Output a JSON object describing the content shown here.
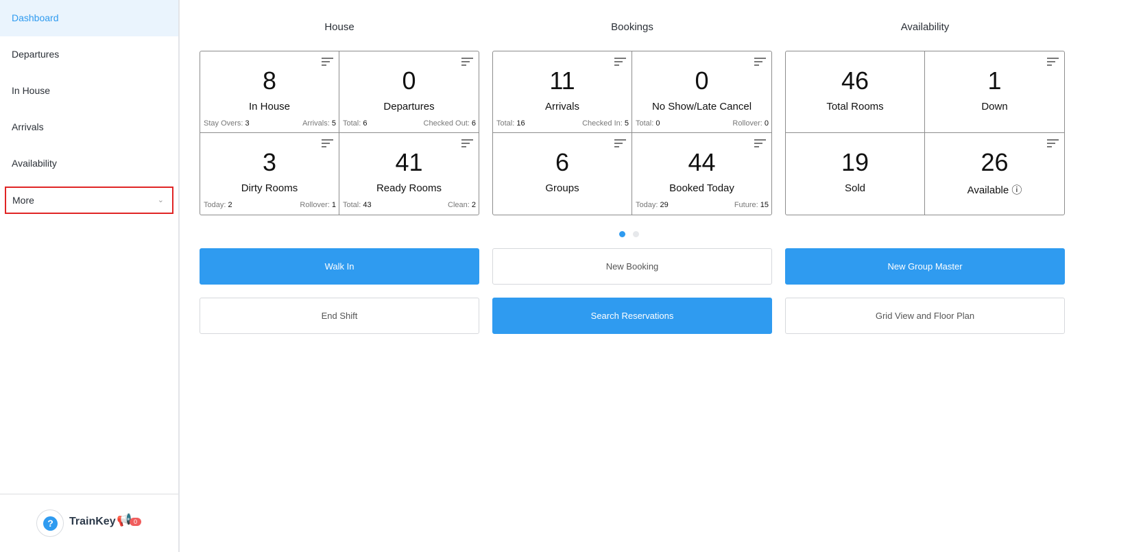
{
  "sidebar": {
    "items": [
      {
        "label": "Dashboard",
        "active": true
      },
      {
        "label": "Departures"
      },
      {
        "label": "In House"
      },
      {
        "label": "Arrivals"
      },
      {
        "label": "Availability"
      }
    ],
    "more": "More",
    "brand": "TrainKey",
    "help_icon": "?",
    "notification_count": "0"
  },
  "columns": [
    {
      "title": "House",
      "cells": [
        {
          "value": "8",
          "label": "In House",
          "left_label": "Stay Overs:",
          "left_value": "3",
          "right_label": "Arrivals:",
          "right_value": "5"
        },
        {
          "value": "0",
          "label": "Departures",
          "left_label": "Total:",
          "left_value": "6",
          "right_label": "Checked Out:",
          "right_value": "6"
        },
        {
          "value": "3",
          "label": "Dirty Rooms",
          "left_label": "Today:",
          "left_value": "2",
          "right_label": "Rollover:",
          "right_value": "1"
        },
        {
          "value": "41",
          "label": "Ready Rooms",
          "left_label": "Total:",
          "left_value": "43",
          "right_label": "Clean:",
          "right_value": "2"
        }
      ]
    },
    {
      "title": "Bookings",
      "cells": [
        {
          "value": "11",
          "label": "Arrivals",
          "left_label": "Total:",
          "left_value": "16",
          "right_label": "Checked In:",
          "right_value": "5"
        },
        {
          "value": "0",
          "label": "No Show/Late Cancel",
          "left_label": "Total:",
          "left_value": "0",
          "right_label": "Rollover:",
          "right_value": "0"
        },
        {
          "value": "6",
          "label": "Groups"
        },
        {
          "value": "44",
          "label": "Booked Today",
          "left_label": "Today:",
          "left_value": "29",
          "right_label": "Future:",
          "right_value": "15"
        }
      ]
    },
    {
      "title": "Availability",
      "cells": [
        {
          "value": "46",
          "label": "Total Rooms"
        },
        {
          "value": "1",
          "label": "Down"
        },
        {
          "value": "19",
          "label": "Sold"
        },
        {
          "value": "26",
          "label": "Available ⓘ"
        }
      ]
    }
  ],
  "buttons": [
    "Walk In",
    "New Booking",
    "New Group Master",
    "End Shift",
    "Search Reservations",
    "Grid View and Floor Plan"
  ],
  "colors": {
    "accent": "#2f9bf0",
    "highlight_border": "#e02424"
  }
}
